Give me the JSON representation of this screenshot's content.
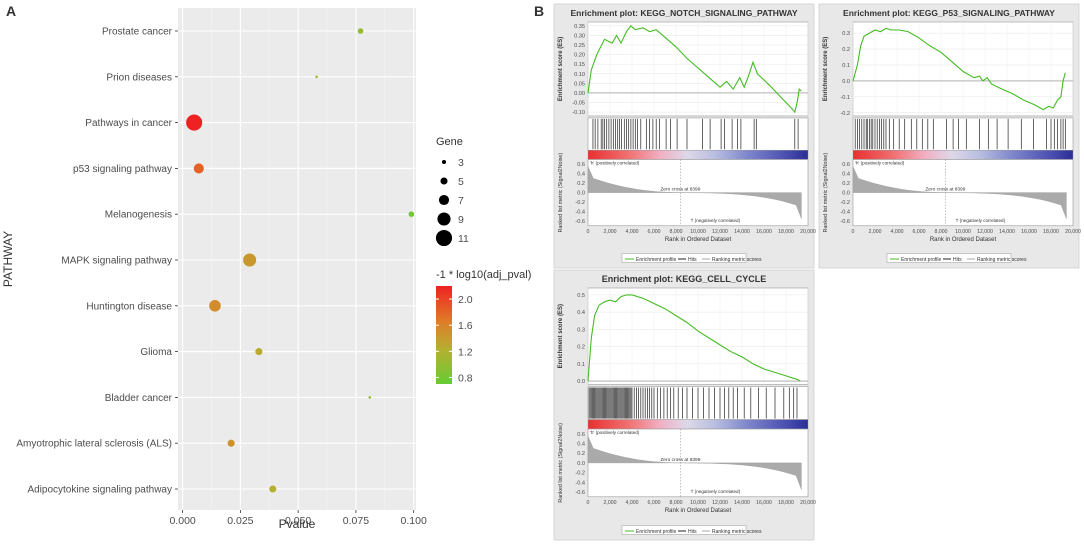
{
  "panel_labels": {
    "a": "A",
    "b": "B"
  },
  "chart_data": [
    {
      "type": "scatter",
      "xlabel": "Pvalue",
      "ylabel": "PATHWAY",
      "xlim": [
        -0.002,
        0.101
      ],
      "x_ticks": [
        0.0,
        0.025,
        0.05,
        0.075,
        0.1
      ],
      "x_tick_labels": [
        "0.000",
        "0.025",
        "0.050",
        "0.075",
        "0.100"
      ],
      "pathways": [
        {
          "name": "Prostate cancer",
          "pvalue": 0.077,
          "gene": 4,
          "color_value": 1.0
        },
        {
          "name": "Prion diseases",
          "pvalue": 0.058,
          "gene": 2,
          "color_value": 1.1
        },
        {
          "name": "Pathways in cancer",
          "pvalue": 0.005,
          "gene": 11,
          "color_value": 2.2
        },
        {
          "name": "p53 signaling pathway",
          "pvalue": 0.007,
          "gene": 7,
          "color_value": 1.8
        },
        {
          "name": "Melanogenesis",
          "pvalue": 0.099,
          "gene": 4,
          "color_value": 0.8
        },
        {
          "name": "MAPK signaling pathway",
          "pvalue": 0.029,
          "gene": 9,
          "color_value": 1.4
        },
        {
          "name": "Huntington disease",
          "pvalue": 0.014,
          "gene": 8,
          "color_value": 1.5
        },
        {
          "name": "Glioma",
          "pvalue": 0.033,
          "gene": 5,
          "color_value": 1.25
        },
        {
          "name": "Bladder cancer",
          "pvalue": 0.081,
          "gene": 2,
          "color_value": 1.0
        },
        {
          "name": "Amyotrophic lateral sclerosis (ALS)",
          "pvalue": 0.021,
          "gene": 5,
          "color_value": 1.45
        },
        {
          "name": "Adipocytokine signaling pathway",
          "pvalue": 0.039,
          "gene": 5,
          "color_value": 1.2
        }
      ],
      "legend_size": {
        "title": "Gene",
        "values": [
          3,
          5,
          7,
          9,
          11
        ],
        "labels": [
          "3",
          "5",
          "7",
          "9",
          "11"
        ]
      },
      "legend_color": {
        "title": "-1 * log10(adj_pval)",
        "range": [
          0.7,
          2.2
        ],
        "ticks": [
          0.8,
          1.2,
          1.6,
          2.0
        ],
        "tick_labels": [
          "0.8",
          "1.2",
          "1.6",
          "2.0"
        ],
        "colors": [
          "#66cc33",
          "#cc9933",
          "#ee5522",
          "#ee2222"
        ]
      },
      "colors": {
        "grid": "#ffffff",
        "panel": "#ebebeb"
      }
    },
    {
      "type": "line",
      "title": "Enrichment plot: KEGG_NOTCH_SIGNALING_PATHWAY",
      "ylabel": "Enrichment score (ES)",
      "ylim": [
        -0.12,
        0.37
      ],
      "y_ticks": [
        0.35,
        0.3,
        0.25,
        0.2,
        0.15,
        0.1,
        0.05,
        0.0,
        -0.05,
        -0.1
      ],
      "y_tick_labels": [
        "0.35",
        "0.30",
        "0.25",
        "0.20",
        "0.15",
        "0.10",
        "0.05",
        "0.00",
        "-0.05",
        "-0.10"
      ],
      "x": [
        0,
        300,
        800,
        1500,
        2200,
        2600,
        3000,
        3500,
        3900,
        4300,
        5000,
        5600,
        6200,
        7000,
        8000,
        9000,
        10000,
        11000,
        12000,
        12600,
        13200,
        13800,
        14200,
        14600,
        15000,
        15400,
        16500,
        17500,
        18500,
        18800,
        19050,
        19200,
        19400
      ],
      "es": [
        0.0,
        0.12,
        0.2,
        0.28,
        0.26,
        0.3,
        0.26,
        0.32,
        0.35,
        0.33,
        0.34,
        0.32,
        0.33,
        0.29,
        0.24,
        0.18,
        0.13,
        0.08,
        0.03,
        0.06,
        0.02,
        0.08,
        0.03,
        0.09,
        0.16,
        0.1,
        0.04,
        -0.02,
        -0.08,
        -0.1,
        -0.04,
        0.02,
        0.01
      ],
      "hits": [
        450,
        650,
        900,
        1200,
        1350,
        1500,
        1700,
        1900,
        2100,
        2300,
        2500,
        2700,
        2850,
        3050,
        3300,
        3500,
        3700,
        3900,
        4100,
        4300,
        4500,
        4800,
        5300,
        5600,
        5900,
        6200,
        6500,
        7100,
        7500,
        8100,
        9000,
        10400,
        11100,
        12100,
        12400,
        13100,
        13600,
        13900,
        15100,
        15300,
        18800,
        19100
      ],
      "bar_labels": {
        "pos": "'h' (positively correlated)",
        "neg": "'l' (negatively correlated)",
        "zero": "Zero cross at 8399"
      },
      "metric_ylabel": "Ranked list metric (Signal2Noise)",
      "metric_ticks": [
        0.6,
        0.4,
        0.2,
        0.0,
        -0.2,
        -0.4,
        -0.6
      ],
      "metric_tick_labels": [
        "0.6",
        "0.4",
        "0.2",
        "0.0",
        "-0.2",
        "-0.4",
        "-0.6"
      ],
      "xlabel": "Rank in Ordered Dataset",
      "x_ticks": [
        0,
        2000,
        4000,
        6000,
        8000,
        10000,
        12000,
        14000,
        16000,
        18000,
        20000
      ],
      "x_tick_labels": [
        "0",
        "2,000",
        "4,000",
        "6,000",
        "8,000",
        "10,000",
        "12,000",
        "14,000",
        "16,000",
        "18,000",
        "20,000"
      ],
      "legend": [
        "Enrichment profile",
        "Hits",
        "Ranking metric scores"
      ]
    },
    {
      "type": "line",
      "title": "Enrichment plot: KEGG_P53_SIGNALING_PATHWAY",
      "ylabel": "Enrichment score (ES)",
      "ylim": [
        -0.22,
        0.37
      ],
      "y_ticks": [
        0.3,
        0.2,
        0.1,
        0.0,
        -0.1,
        -0.2
      ],
      "y_tick_labels": [
        "0.3",
        "0.2",
        "0.1",
        "0.0",
        "-0.1",
        "-0.2"
      ],
      "x": [
        0,
        400,
        700,
        1000,
        1500,
        2000,
        2500,
        3000,
        3500,
        4200,
        5000,
        6000,
        7000,
        8000,
        9000,
        10000,
        11000,
        11500,
        11800,
        12200,
        12600,
        13500,
        14500,
        15500,
        16500,
        17300,
        17800,
        18200,
        18600,
        18900,
        19100,
        19300
      ],
      "es": [
        0.0,
        0.1,
        0.22,
        0.28,
        0.3,
        0.32,
        0.31,
        0.33,
        0.32,
        0.32,
        0.31,
        0.27,
        0.22,
        0.18,
        0.12,
        0.06,
        0.02,
        0.03,
        0.0,
        0.02,
        -0.02,
        -0.05,
        -0.08,
        -0.12,
        -0.15,
        -0.18,
        -0.16,
        -0.17,
        -0.12,
        -0.1,
        0.0,
        0.05
      ],
      "hits": [
        200,
        400,
        600,
        800,
        1000,
        1200,
        1300,
        1500,
        1650,
        1800,
        2000,
        2200,
        2400,
        2600,
        2800,
        3000,
        3300,
        3700,
        4200,
        4700,
        5300,
        5800,
        6300,
        6800,
        7300,
        8500,
        9100,
        9600,
        10300,
        11500,
        12300,
        13100,
        14100,
        15300,
        16400,
        17600,
        18000,
        18300,
        18600,
        18900,
        19100,
        19300
      ],
      "bar_labels": {
        "pos": "'h' (positively correlated)",
        "neg": "'l' (negatively correlated)",
        "zero": "Zero cross at 8399"
      },
      "metric_ylabel": "Ranked list metric (Signal2Noise)",
      "metric_ticks": [
        0.6,
        0.4,
        0.2,
        0.0,
        -0.2,
        -0.4,
        -0.6
      ],
      "metric_tick_labels": [
        "0.6",
        "0.4",
        "0.2",
        "0.0",
        "-0.2",
        "-0.4",
        "-0.6"
      ],
      "xlabel": "Rank in Ordered Dataset",
      "x_ticks": [
        0,
        2000,
        4000,
        6000,
        8000,
        10000,
        12000,
        14000,
        16000,
        18000,
        20000
      ],
      "x_tick_labels": [
        "0",
        "2,000",
        "4,000",
        "6,000",
        "8,000",
        "10,000",
        "12,000",
        "14,000",
        "16,000",
        "18,000",
        "20,000"
      ],
      "legend": [
        "Enrichment profile",
        "Hits",
        "Ranking metric scores"
      ]
    },
    {
      "type": "line",
      "title": "Enrichment plot: KEGG_CELL_CYCLE",
      "ylabel": "Enrichment score (ES)",
      "ylim": [
        -0.02,
        0.54
      ],
      "y_ticks": [
        0.5,
        0.4,
        0.3,
        0.2,
        0.1,
        0.0
      ],
      "y_tick_labels": [
        "0.5",
        "0.4",
        "0.3",
        "0.2",
        "0.1",
        "0.0"
      ],
      "x": [
        0,
        300,
        600,
        1000,
        1500,
        2000,
        2500,
        3000,
        3500,
        4000,
        4500,
        5000,
        6000,
        7000,
        8000,
        9000,
        10000,
        11000,
        12000,
        13000,
        14000,
        15000,
        16000,
        17000,
        18000,
        18500,
        19000,
        19300
      ],
      "es": [
        0.0,
        0.25,
        0.38,
        0.44,
        0.46,
        0.47,
        0.46,
        0.49,
        0.5,
        0.5,
        0.49,
        0.48,
        0.45,
        0.42,
        0.38,
        0.34,
        0.29,
        0.25,
        0.21,
        0.17,
        0.14,
        0.1,
        0.07,
        0.05,
        0.03,
        0.02,
        0.01,
        0.0
      ],
      "hits": [
        100,
        200,
        300,
        400,
        500,
        600,
        700,
        800,
        900,
        1000,
        1100,
        1200,
        1300,
        1400,
        1500,
        1600,
        1700,
        1800,
        1900,
        2000,
        2100,
        2200,
        2300,
        2400,
        2500,
        2600,
        2700,
        2800,
        2900,
        3000,
        3100,
        3200,
        3300,
        3400,
        3500,
        3600,
        3700,
        3800,
        3900,
        4000,
        4200,
        4400,
        4600,
        4800,
        5000,
        5200,
        5400,
        5600,
        5800,
        6000,
        6300,
        6600,
        6900,
        7200,
        7500,
        7800,
        8200,
        8600,
        9000,
        9500,
        10000,
        10500,
        11000,
        11500,
        12000,
        12400,
        12800,
        13200,
        13600,
        14200,
        14800,
        15500,
        16200,
        17000,
        17800,
        18300,
        18700,
        19000
      ],
      "bar_labels": {
        "pos": "'h' (positively correlated)",
        "neg": "'l' (negatively correlated)",
        "zero": "Zero cross at 8399"
      },
      "metric_ylabel": "Ranked list metric (Signal2Noise)",
      "metric_ticks": [
        0.6,
        0.4,
        0.2,
        0.0,
        -0.2,
        -0.4,
        -0.6
      ],
      "metric_tick_labels": [
        "0.6",
        "0.4",
        "0.2",
        "0.0",
        "-0.2",
        "-0.4",
        "-0.6"
      ],
      "xlabel": "Rank in Ordered Dataset",
      "x_ticks": [
        0,
        2000,
        4000,
        6000,
        8000,
        10000,
        12000,
        14000,
        16000,
        18000,
        20000
      ],
      "x_tick_labels": [
        "0",
        "2,000",
        "4,000",
        "6,000",
        "8,000",
        "10,000",
        "12,000",
        "14,000",
        "16,000",
        "18,000",
        "20,000"
      ],
      "legend": [
        "Enrichment profile",
        "Hits",
        "Ranking metric scores"
      ]
    }
  ]
}
